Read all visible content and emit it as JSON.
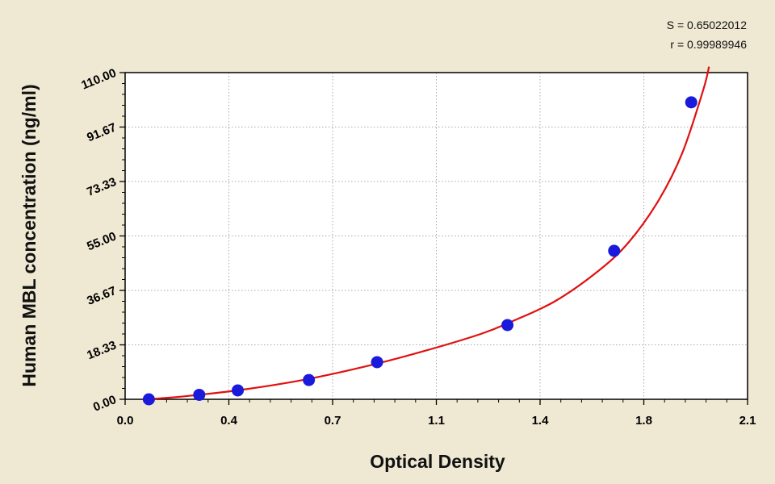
{
  "chart_data": {
    "type": "scatter",
    "xlabel": "Optical Density",
    "ylabel": "Human MBL concentration (ng/ml)",
    "xlim": [
      0.0,
      2.1
    ],
    "ylim": [
      0.0,
      110.0
    ],
    "x_ticks": [
      "0.0",
      "0.4",
      "0.7",
      "1.1",
      "1.4",
      "1.8",
      "2.1"
    ],
    "y_ticks": [
      "0.00",
      "18.33",
      "36.67",
      "55.00",
      "73.33",
      "91.67",
      "110.00"
    ],
    "grid": true,
    "series": [
      {
        "color": "#1a1adc",
        "points": [
          {
            "x": 0.08,
            "y": 0.0
          },
          {
            "x": 0.25,
            "y": 1.5
          },
          {
            "x": 0.38,
            "y": 3.0
          },
          {
            "x": 0.62,
            "y": 6.5
          },
          {
            "x": 0.85,
            "y": 12.5
          },
          {
            "x": 1.29,
            "y": 25.0
          },
          {
            "x": 1.65,
            "y": 50.0
          },
          {
            "x": 1.91,
            "y": 100.0
          }
        ]
      }
    ],
    "fit_curve": {
      "color": "#e01010",
      "points": [
        {
          "x": 0.07,
          "y": 0.0
        },
        {
          "x": 0.2,
          "y": 1.0
        },
        {
          "x": 0.4,
          "y": 3.3
        },
        {
          "x": 0.6,
          "y": 6.5
        },
        {
          "x": 0.8,
          "y": 10.8
        },
        {
          "x": 1.0,
          "y": 16.0
        },
        {
          "x": 1.2,
          "y": 22.0
        },
        {
          "x": 1.3,
          "y": 26.0
        },
        {
          "x": 1.45,
          "y": 33.0
        },
        {
          "x": 1.6,
          "y": 43.5
        },
        {
          "x": 1.7,
          "y": 53.0
        },
        {
          "x": 1.8,
          "y": 67.0
        },
        {
          "x": 1.88,
          "y": 83.0
        },
        {
          "x": 1.95,
          "y": 104.0
        },
        {
          "x": 1.97,
          "y": 112.0
        }
      ]
    },
    "annotations": [
      {
        "text": "S = 0.65022012"
      },
      {
        "text": "r = 0.99989946"
      }
    ]
  }
}
